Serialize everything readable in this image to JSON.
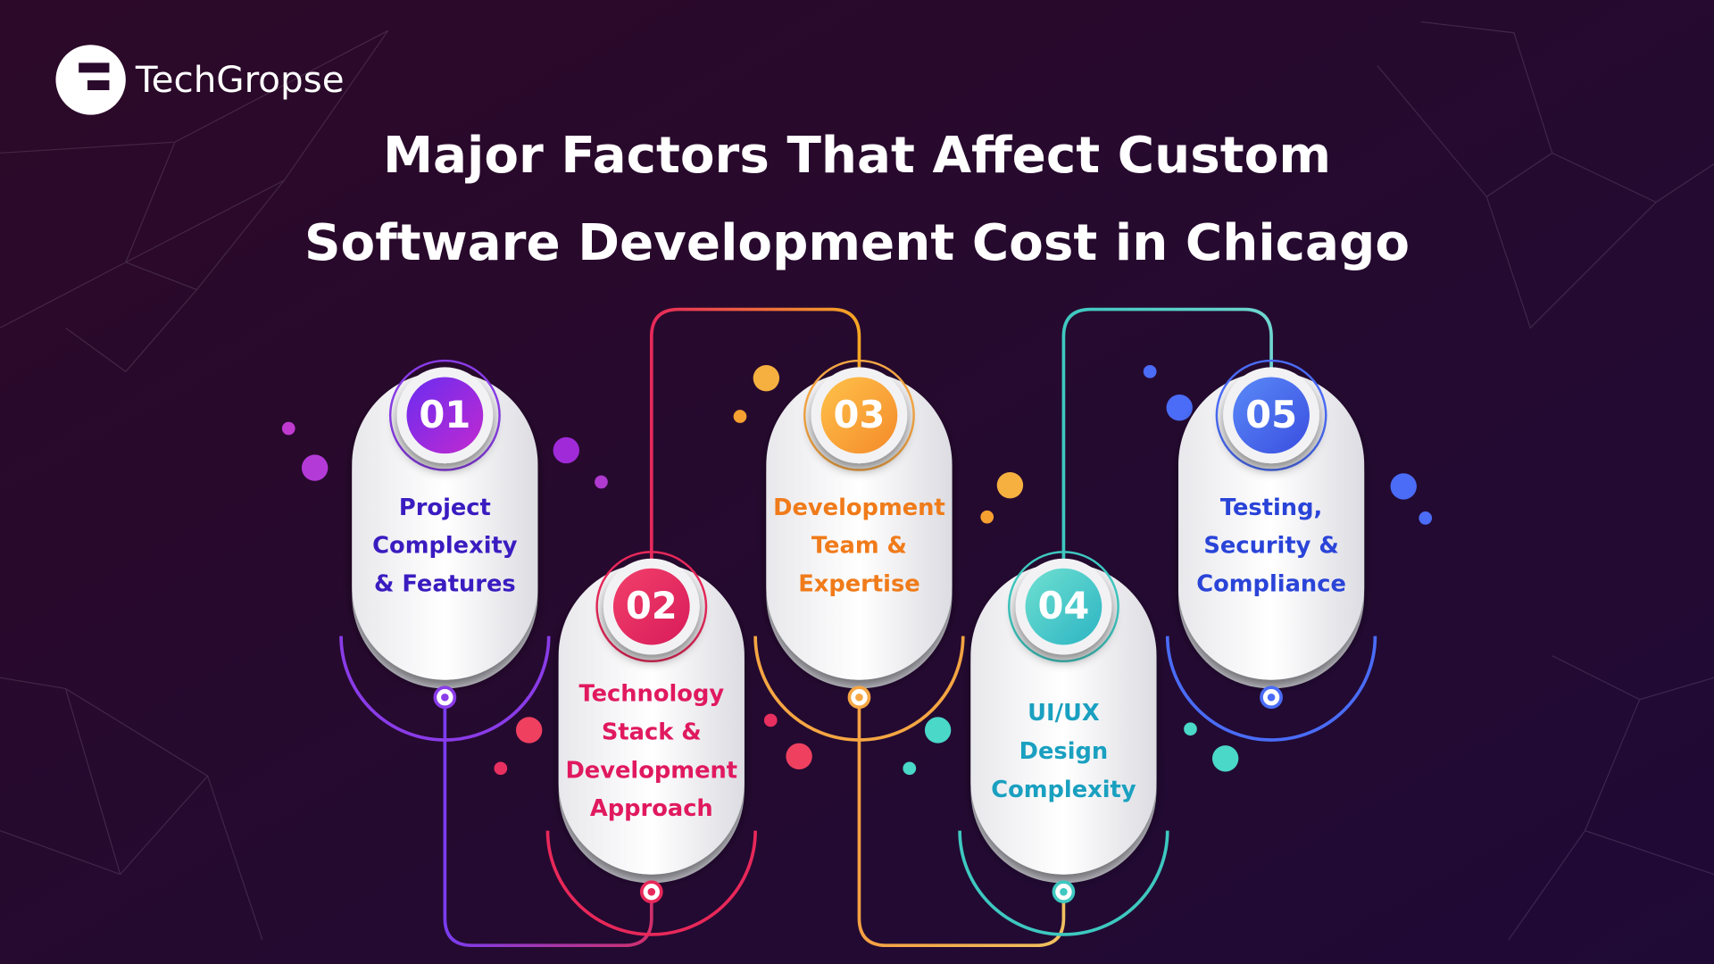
{
  "brand": "TechGropse",
  "title": [
    "Major Factors That Affect Custom",
    "Software Development Cost in Chicago"
  ],
  "items": [
    {
      "number": "01",
      "label": [
        "Project",
        "Complexity",
        "& Features"
      ]
    },
    {
      "number": "02",
      "label": [
        "Technology",
        "Stack &",
        "Development",
        "Approach"
      ]
    },
    {
      "number": "03",
      "label": [
        "Development",
        "Team &",
        "Expertise"
      ]
    },
    {
      "number": "04",
      "label": [
        "UI/UX",
        "Design",
        "Complexity"
      ]
    },
    {
      "number": "05",
      "label": [
        "Testing,",
        "Security &",
        "Compliance"
      ]
    }
  ]
}
